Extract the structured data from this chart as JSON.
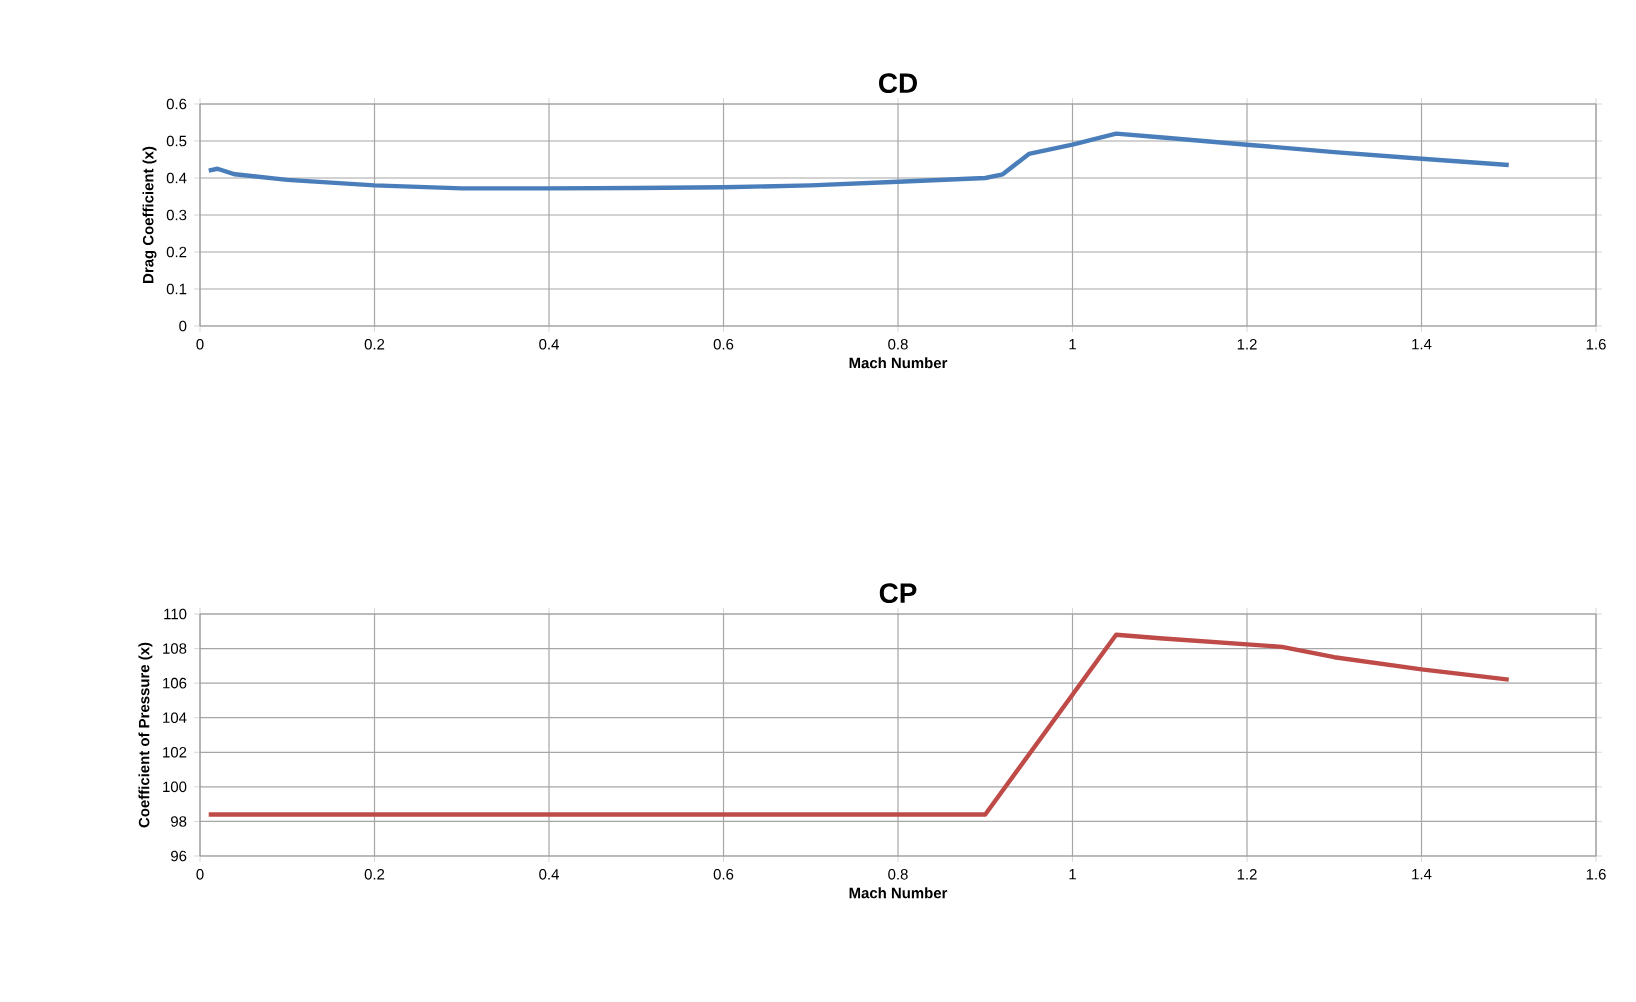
{
  "chart_data": [
    {
      "type": "line",
      "title": "CD",
      "xlabel": "Mach Number",
      "ylabel": "Drag Coefficient (x)",
      "xlim": [
        0,
        1.6
      ],
      "xticks": [
        0,
        0.2,
        0.4,
        0.6,
        0.8,
        1,
        1.2,
        1.4,
        1.6
      ],
      "ylim": [
        0,
        0.6
      ],
      "yticks": [
        0,
        0.1,
        0.2,
        0.3,
        0.4,
        0.5,
        0.6
      ],
      "grid": true,
      "line_style": "solid",
      "series": [
        {
          "color": "#4a7ebb",
          "x": [
            0.01,
            0.02,
            0.04,
            0.1,
            0.2,
            0.3,
            0.4,
            0.5,
            0.6,
            0.7,
            0.8,
            0.9,
            0.92,
            0.95,
            1.0,
            1.05,
            1.1,
            1.2,
            1.3,
            1.4,
            1.5
          ],
          "values": [
            0.42,
            0.425,
            0.41,
            0.395,
            0.38,
            0.372,
            0.372,
            0.373,
            0.375,
            0.38,
            0.39,
            0.4,
            0.41,
            0.465,
            0.49,
            0.52,
            0.51,
            0.49,
            0.47,
            0.452,
            0.435
          ]
        }
      ]
    },
    {
      "type": "line",
      "title": "CP",
      "xlabel": "Mach Number",
      "ylabel": "Coefficient of Pressure (x)",
      "xlim": [
        0,
        1.6
      ],
      "xticks": [
        0,
        0.2,
        0.4,
        0.6,
        0.8,
        1,
        1.2,
        1.4,
        1.6
      ],
      "ylim": [
        96,
        110
      ],
      "yticks": [
        96,
        98,
        100,
        102,
        104,
        106,
        108,
        110
      ],
      "grid": true,
      "line_style": "solid",
      "series": [
        {
          "color": "#be4b48",
          "x": [
            0.01,
            0.9,
            1.05,
            1.1,
            1.24,
            1.3,
            1.4,
            1.5
          ],
          "values": [
            98.4,
            98.4,
            108.8,
            108.6,
            108.1,
            107.5,
            106.8,
            106.2
          ]
        }
      ]
    }
  ]
}
